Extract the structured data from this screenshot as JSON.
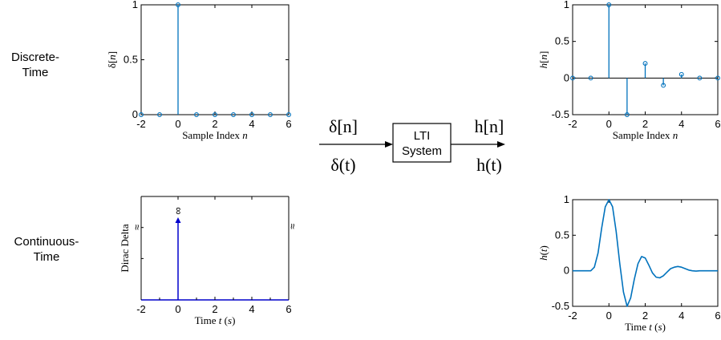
{
  "row_labels": {
    "discrete": [
      "Discrete-",
      "Time"
    ],
    "continuous": [
      "Continuous-",
      "Time"
    ]
  },
  "system": {
    "box_label": [
      "LTI",
      "System"
    ],
    "input_discrete": "δ[n]",
    "input_continuous": "δ(t)",
    "output_discrete": "h[n]",
    "output_continuous": "h(t)"
  },
  "colors": {
    "signal": "#0072BD",
    "dirac": "#0000CC",
    "axis": "#000000"
  },
  "chart_data": [
    {
      "id": "discrete-input",
      "type": "stem",
      "xlabel": "Sample Index n",
      "ylabel": "δ[n]",
      "xlim": [
        -2,
        6
      ],
      "ylim": [
        0,
        1
      ],
      "xticks": [
        "-2",
        "0",
        "2",
        "4",
        "6"
      ],
      "yticks": [
        "0",
        "0.5",
        "1"
      ],
      "x": [
        -2,
        -1,
        0,
        1,
        2,
        3,
        4,
        5,
        6
      ],
      "y": [
        0,
        0,
        1,
        0,
        0,
        0,
        0,
        0,
        0
      ]
    },
    {
      "id": "discrete-output",
      "type": "stem",
      "xlabel": "Sample Index n",
      "ylabel": "h[n]",
      "xlim": [
        -2,
        6
      ],
      "ylim": [
        -0.5,
        1
      ],
      "xticks": [
        "-2",
        "0",
        "2",
        "4",
        "6"
      ],
      "yticks": [
        "-0.5",
        "0",
        "0.5",
        "1"
      ],
      "x": [
        -2,
        -1,
        0,
        1,
        2,
        3,
        4,
        5,
        6
      ],
      "y": [
        0,
        0,
        1,
        -0.5,
        0.2,
        -0.1,
        0.05,
        0,
        0
      ]
    },
    {
      "id": "continuous-input",
      "type": "impulse",
      "xlabel": "Time t (s)",
      "ylabel": "Dirac Delta",
      "xlim": [
        -2,
        6
      ],
      "xticks": [
        "-2",
        "0",
        "2",
        "4",
        "6"
      ],
      "impulse_at": 0,
      "impulse_label": "∞",
      "edge_marks": "≈"
    },
    {
      "id": "continuous-output",
      "type": "line",
      "xlabel": "Time t (s)",
      "ylabel": "h(t)",
      "xlim": [
        -2,
        6
      ],
      "ylim": [
        -0.5,
        1
      ],
      "xticks": [
        "-2",
        "0",
        "2",
        "4",
        "6"
      ],
      "yticks": [
        "-0.5",
        "0",
        "0.5",
        "1"
      ],
      "x": [
        -2,
        -1,
        -0.8,
        -0.6,
        -0.4,
        -0.2,
        0,
        0.2,
        0.4,
        0.6,
        0.8,
        1,
        1.2,
        1.4,
        1.6,
        1.8,
        2,
        2.2,
        2.4,
        2.6,
        2.8,
        3,
        3.2,
        3.4,
        3.6,
        3.8,
        4,
        4.2,
        4.4,
        4.6,
        4.8,
        5,
        5.5,
        6
      ],
      "y": [
        0,
        0,
        0.05,
        0.25,
        0.6,
        0.9,
        1,
        0.9,
        0.55,
        0.1,
        -0.3,
        -0.5,
        -0.38,
        -0.12,
        0.1,
        0.2,
        0.18,
        0.08,
        -0.03,
        -0.09,
        -0.1,
        -0.07,
        -0.02,
        0.03,
        0.05,
        0.06,
        0.05,
        0.03,
        0.01,
        0,
        -0.005,
        0,
        0,
        0
      ]
    }
  ]
}
